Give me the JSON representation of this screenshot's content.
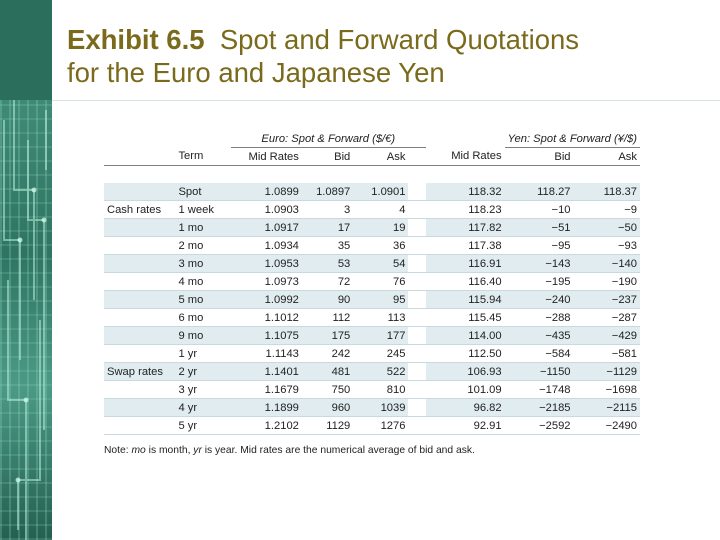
{
  "slide": {
    "title_bold": "Exhibit 6.5",
    "title_rest": "  Spot and Forward Quotations",
    "title_line2": "for the Euro and Japanese Yen"
  },
  "table": {
    "euro_group": "Euro: Spot & Forward ($/€)",
    "yen_group": "Yen: Spot & Forward (¥/$)",
    "columns": [
      "Term",
      "Mid Rates",
      "Bid",
      "Ask",
      "Mid Rates",
      "Bid",
      "Ask"
    ],
    "row_labels": {
      "cash": "Cash rates",
      "swap": "Swap rates"
    },
    "rows": [
      [
        "Spot",
        "1.0899",
        "1.0897",
        "1.0901",
        "118.32",
        "118.27",
        "118.37"
      ],
      [
        "1 week",
        "1.0903",
        "3",
        "4",
        "118.23",
        "−10",
        "−9"
      ],
      [
        "1 mo",
        "1.0917",
        "17",
        "19",
        "117.82",
        "−51",
        "−50"
      ],
      [
        "2 mo",
        "1.0934",
        "35",
        "36",
        "117.38",
        "−95",
        "−93"
      ],
      [
        "3 mo",
        "1.0953",
        "53",
        "54",
        "116.91",
        "−143",
        "−140"
      ],
      [
        "4 mo",
        "1.0973",
        "72",
        "76",
        "116.40",
        "−195",
        "−190"
      ],
      [
        "5 mo",
        "1.0992",
        "90",
        "95",
        "115.94",
        "−240",
        "−237"
      ],
      [
        "6 mo",
        "1.1012",
        "112",
        "113",
        "115.45",
        "−288",
        "−287"
      ],
      [
        "9 mo",
        "1.1075",
        "175",
        "177",
        "114.00",
        "−435",
        "−429"
      ],
      [
        "1 yr",
        "1.1143",
        "242",
        "245",
        "112.50",
        "−584",
        "−581"
      ],
      [
        "2 yr",
        "1.1401",
        "481",
        "522",
        "106.93",
        "−1150",
        "−1129"
      ],
      [
        "3 yr",
        "1.1679",
        "750",
        "810",
        "101.09",
        "−1748",
        "−1698"
      ],
      [
        "4 yr",
        "1.1899",
        "960",
        "1039",
        "96.82",
        "−2185",
        "−2115"
      ],
      [
        "5 yr",
        "1.2102",
        "1129",
        "1276",
        "92.91",
        "−2592",
        "−2490"
      ]
    ]
  },
  "note": {
    "prefix": "Note: ",
    "mo": "mo",
    "mid1": " is month, ",
    "yr": "yr",
    "rest": " is year. Mid rates are the numerical average of bid and ask."
  }
}
